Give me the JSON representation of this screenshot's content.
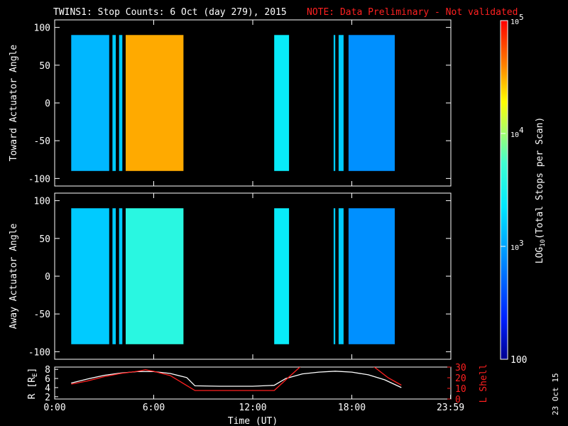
{
  "header": {
    "title": "TWINS1: Stop Counts:  6 Oct (day 279), 2015",
    "note": "NOTE: Data Preliminary - Not validated"
  },
  "colors": {
    "note_red": "#ff2020",
    "lshell_line": "#ff2020",
    "r_line": "#ffffff",
    "background": "#000000"
  },
  "footer": {
    "date_stamp": "23 Oct 15"
  },
  "chart_data": [
    {
      "type": "heatmap",
      "id": "toward",
      "ylabel": "Toward Actuator Angle",
      "ylim": [
        -110,
        110
      ],
      "yticks": [
        "100",
        "50",
        "0",
        "-50",
        "-100"
      ],
      "ytick_values": [
        100,
        50,
        0,
        -50,
        -100
      ],
      "xlim": [
        0,
        24
      ],
      "data_angle_range": [
        -90,
        90
      ],
      "data_blocks_hours": [
        [
          1.0,
          3.3
        ],
        [
          3.5,
          3.7
        ],
        [
          3.9,
          4.1
        ],
        [
          4.3,
          7.8
        ],
        [
          13.3,
          14.2
        ],
        [
          16.9,
          17.0
        ],
        [
          17.2,
          17.5
        ],
        [
          17.8,
          20.6
        ]
      ],
      "dominant_log10_counts": [
        3.1,
        3.2,
        3.2,
        4.5,
        3.4,
        3.2,
        3.2,
        2.9
      ]
    },
    {
      "type": "heatmap",
      "id": "away",
      "ylabel": "Away Actuator Angle",
      "ylim": [
        -110,
        110
      ],
      "yticks": [
        "100",
        "50",
        "0",
        "-50",
        "-100"
      ],
      "ytick_values": [
        100,
        50,
        0,
        -50,
        -100
      ],
      "xlim": [
        0,
        24
      ],
      "data_angle_range": [
        -90,
        90
      ],
      "data_blocks_hours": [
        [
          1.0,
          3.3
        ],
        [
          3.5,
          3.7
        ],
        [
          3.9,
          4.1
        ],
        [
          4.3,
          7.8
        ],
        [
          13.3,
          14.2
        ],
        [
          16.9,
          17.0
        ],
        [
          17.2,
          17.5
        ],
        [
          17.8,
          20.6
        ]
      ],
      "dominant_log10_counts": [
        3.2,
        3.2,
        3.2,
        3.6,
        3.4,
        3.2,
        3.2,
        2.9
      ]
    },
    {
      "type": "line",
      "id": "orbit",
      "ylabel": "R [R",
      "ylabel_sub": "E",
      "ylabel_close": "]",
      "ylim": [
        1.5,
        8.5
      ],
      "yticks": [
        "8",
        "6",
        "4",
        "2"
      ],
      "ytick_values": [
        8,
        6,
        4,
        2
      ],
      "y2label": "L Shell",
      "y2lim": [
        0,
        30
      ],
      "y2ticks": [
        "30",
        "20",
        "10",
        "0"
      ],
      "y2tick_values": [
        30,
        20,
        10,
        0
      ],
      "xlabel": "Time (UT)",
      "xticks": [
        "0:00",
        "6:00",
        "12:00",
        "18:00",
        "23:59"
      ],
      "xtick_values": [
        0,
        6,
        12,
        18,
        23.98
      ],
      "series": [
        {
          "color": "#ffffff",
          "axis": "left",
          "x": [
            1.0,
            2.0,
            3.0,
            4.0,
            5.0,
            6.0,
            7.0,
            8.0,
            8.5,
            10.0,
            12.0,
            13.3,
            14.0,
            15.0,
            16.0,
            17.0,
            18.0,
            19.0,
            20.0,
            21.0
          ],
          "y": [
            5.0,
            5.9,
            6.7,
            7.2,
            7.5,
            7.5,
            7.1,
            6.2,
            4.4,
            4.3,
            4.3,
            4.5,
            6.0,
            7.0,
            7.4,
            7.6,
            7.4,
            6.8,
            5.7,
            4.0
          ]
        },
        {
          "color": "#ff2020",
          "axis": "right",
          "x": [
            1.0,
            2.0,
            3.0,
            4.0,
            5.0,
            5.5,
            6.0,
            7.0,
            8.5,
            10.0,
            12.0,
            13.3,
            14.0,
            15.0,
            19.2,
            20.2,
            21.0
          ],
          "y": [
            14.0,
            17.0,
            21.0,
            24.0,
            26.0,
            27.5,
            26.0,
            22.0,
            8.0,
            8.0,
            8.0,
            8.0,
            18.0,
            32.0,
            32.0,
            20.0,
            13.0
          ]
        }
      ]
    },
    {
      "type": "colorbar",
      "id": "colorbar",
      "label_main": "LOG",
      "label_sub": "10",
      "label_rest": "(Total Stops per Scan)",
      "range_log10": [
        2,
        5
      ],
      "tick_base": "10",
      "ticks": [
        {
          "log10": 5,
          "exp": "5",
          "base": "10"
        },
        {
          "log10": 4,
          "exp": "4",
          "base": "10"
        },
        {
          "log10": 3,
          "exp": "3",
          "base": "10"
        },
        {
          "log10": 2,
          "base": "100"
        }
      ]
    }
  ]
}
